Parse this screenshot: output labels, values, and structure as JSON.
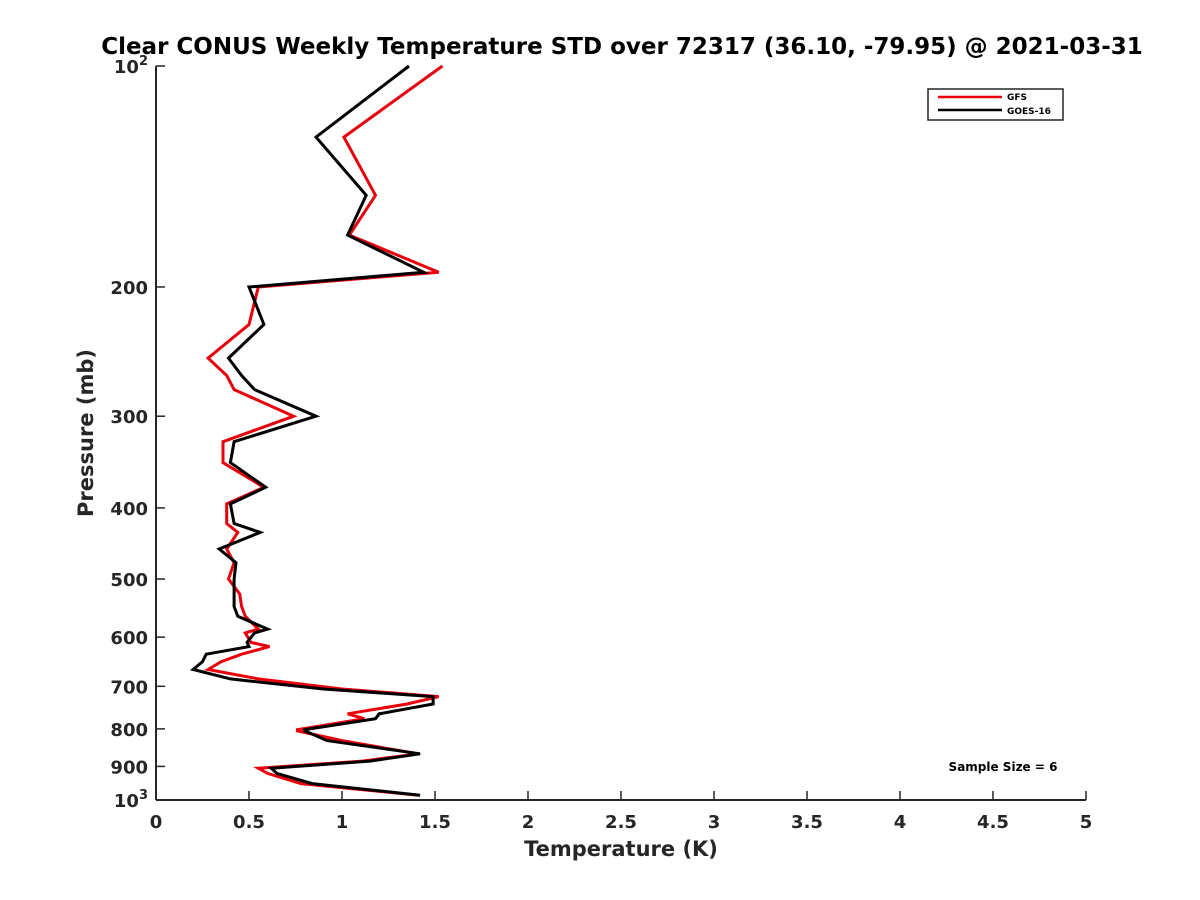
{
  "chart_data": {
    "type": "line",
    "title": "Clear CONUS Weekly Temperature STD over 72317 (36.10, -79.95) @ 2021-03-31",
    "xlabel": "Temperature (K)",
    "ylabel": "Pressure (mb)",
    "xlim": [
      0,
      5
    ],
    "ylim": [
      100,
      1000
    ],
    "y_scale": "log",
    "y_reversed": true,
    "grid": false,
    "legend_position": "top-right",
    "x_ticks": [
      {
        "value": 0,
        "label": "0"
      },
      {
        "value": 0.5,
        "label": "0.5"
      },
      {
        "value": 1,
        "label": "1"
      },
      {
        "value": 1.5,
        "label": "1.5"
      },
      {
        "value": 2,
        "label": "2"
      },
      {
        "value": 2.5,
        "label": "2.5"
      },
      {
        "value": 3,
        "label": "3"
      },
      {
        "value": 3.5,
        "label": "3.5"
      },
      {
        "value": 4,
        "label": "4"
      },
      {
        "value": 4.5,
        "label": "4.5"
      },
      {
        "value": 5,
        "label": "5"
      }
    ],
    "y_ticks": [
      {
        "value": 100,
        "label": "10",
        "exponent": "2"
      },
      {
        "value": 200,
        "label": "200"
      },
      {
        "value": 300,
        "label": "300"
      },
      {
        "value": 400,
        "label": "400"
      },
      {
        "value": 500,
        "label": "500"
      },
      {
        "value": 600,
        "label": "600"
      },
      {
        "value": 700,
        "label": "700"
      },
      {
        "value": 800,
        "label": "800"
      },
      {
        "value": 900,
        "label": "900"
      },
      {
        "value": 1000,
        "label": "10",
        "exponent": "3"
      }
    ],
    "series": [
      {
        "name": "GFS",
        "color": "#e8000b",
        "points": [
          [
            1.54,
            100
          ],
          [
            1.01,
            125
          ],
          [
            1.18,
            150
          ],
          [
            1.04,
            170
          ],
          [
            1.52,
            191
          ],
          [
            0.55,
            200
          ],
          [
            0.5,
            225
          ],
          [
            0.28,
            250
          ],
          [
            0.38,
            264
          ],
          [
            0.42,
            276
          ],
          [
            0.74,
            300
          ],
          [
            0.36,
            325
          ],
          [
            0.36,
            347
          ],
          [
            0.58,
            375
          ],
          [
            0.38,
            395
          ],
          [
            0.38,
            420
          ],
          [
            0.44,
            432
          ],
          [
            0.38,
            455
          ],
          [
            0.42,
            475
          ],
          [
            0.39,
            500
          ],
          [
            0.45,
            524
          ],
          [
            0.46,
            545
          ],
          [
            0.48,
            562
          ],
          [
            0.55,
            585
          ],
          [
            0.48,
            592
          ],
          [
            0.51,
            610
          ],
          [
            0.61,
            618
          ],
          [
            0.46,
            633
          ],
          [
            0.35,
            648
          ],
          [
            0.28,
            664
          ],
          [
            0.55,
            684
          ],
          [
            1.0,
            706
          ],
          [
            1.52,
            723
          ],
          [
            1.35,
            740
          ],
          [
            1.03,
            763
          ],
          [
            1.12,
            775
          ],
          [
            0.76,
            802
          ],
          [
            0.76,
            805
          ],
          [
            1.0,
            830
          ],
          [
            1.41,
            865
          ],
          [
            1.11,
            885
          ],
          [
            0.55,
            905
          ],
          [
            0.6,
            920
          ],
          [
            0.78,
            950
          ],
          [
            1.41,
            985
          ]
        ]
      },
      {
        "name": "GOES-16",
        "color": "#000000",
        "points": [
          [
            1.36,
            100
          ],
          [
            0.86,
            125
          ],
          [
            1.13,
            150
          ],
          [
            1.03,
            170
          ],
          [
            1.44,
            191
          ],
          [
            0.5,
            200
          ],
          [
            0.58,
            225
          ],
          [
            0.39,
            250
          ],
          [
            0.46,
            264
          ],
          [
            0.53,
            276
          ],
          [
            0.86,
            300
          ],
          [
            0.42,
            325
          ],
          [
            0.4,
            347
          ],
          [
            0.59,
            375
          ],
          [
            0.4,
            395
          ],
          [
            0.42,
            420
          ],
          [
            0.56,
            432
          ],
          [
            0.34,
            455
          ],
          [
            0.43,
            475
          ],
          [
            0.42,
            500
          ],
          [
            0.42,
            524
          ],
          [
            0.42,
            545
          ],
          [
            0.44,
            562
          ],
          [
            0.6,
            585
          ],
          [
            0.53,
            592
          ],
          [
            0.49,
            610
          ],
          [
            0.5,
            618
          ],
          [
            0.27,
            633
          ],
          [
            0.25,
            648
          ],
          [
            0.2,
            664
          ],
          [
            0.4,
            684
          ],
          [
            0.9,
            706
          ],
          [
            1.49,
            723
          ],
          [
            1.49,
            740
          ],
          [
            1.2,
            763
          ],
          [
            1.18,
            775
          ],
          [
            0.8,
            802
          ],
          [
            0.8,
            805
          ],
          [
            0.92,
            830
          ],
          [
            1.42,
            865
          ],
          [
            1.15,
            885
          ],
          [
            0.62,
            905
          ],
          [
            0.65,
            920
          ],
          [
            0.84,
            950
          ],
          [
            1.42,
            985
          ]
        ]
      }
    ],
    "annotations": [
      {
        "text": "Sample Size = 6"
      }
    ]
  }
}
